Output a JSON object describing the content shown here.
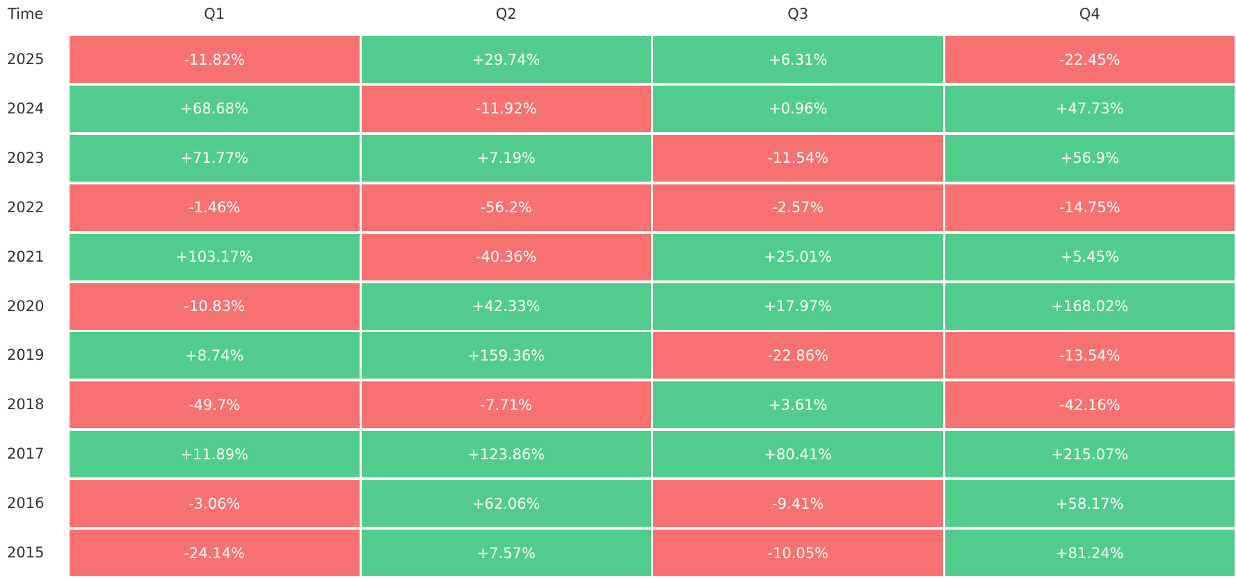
{
  "table": {
    "header": [
      "Time",
      "Q1",
      "Q2",
      "Q3",
      "Q4"
    ],
    "rows": [
      [
        "2025",
        "-11.82%",
        "+29.74%",
        "+6.31%",
        "-22.45%"
      ],
      [
        "2024",
        "+68.68%",
        "-11.92%",
        "+0.96%",
        "+47.73%"
      ],
      [
        "2023",
        "+71.77%",
        "+7.19%",
        "-11.54%",
        "+56.9%"
      ],
      [
        "2022",
        "-1.46%",
        "-56.2%",
        "-2.57%",
        "-14.75%"
      ],
      [
        "2021",
        "+103.17%",
        "-40.36%",
        "+25.01%",
        "+5.45%"
      ],
      [
        "2020",
        "-10.83%",
        "+42.33%",
        "+17.97%",
        "+168.02%"
      ],
      [
        "2019",
        "+8.74%",
        "+159.36%",
        "-22.86%",
        "-13.54%"
      ],
      [
        "2018",
        "-49.7%",
        "-7.71%",
        "+3.61%",
        "-42.16%"
      ],
      [
        "2017",
        "+11.89%",
        "+123.86%",
        "+80.41%",
        "+215.07%"
      ],
      [
        "2016",
        "-3.06%",
        "+62.06%",
        "-9.41%",
        "+58.17%"
      ],
      [
        "2015",
        "-24.14%",
        "+7.57%",
        "-10.05%",
        "+81.24%"
      ]
    ]
  },
  "colors": {
    "positive": "#52cc8c",
    "negative": "#f87171"
  }
}
